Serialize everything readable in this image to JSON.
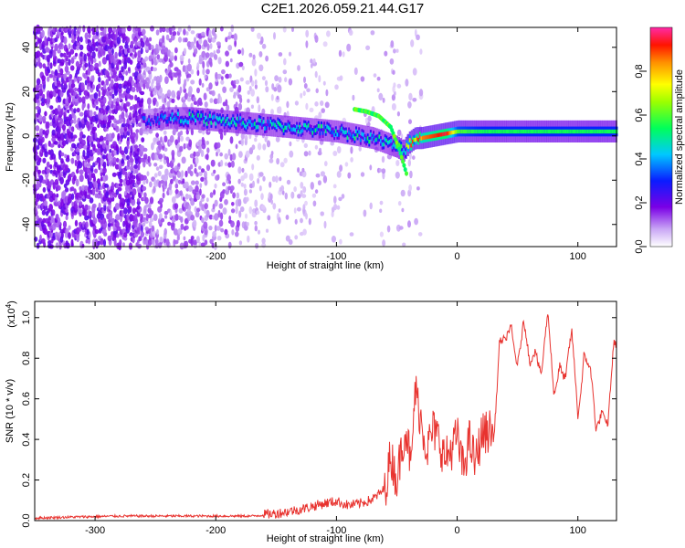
{
  "title": "C2E1.2026.059.21.44.G17",
  "chart_data": [
    {
      "type": "heatmap",
      "xlabel": "Height of straight line (km)",
      "ylabel": "Frequency (Hz)",
      "xlim": [
        -350,
        132
      ],
      "ylim": [
        -50,
        49
      ],
      "xticks": [
        -300,
        -200,
        -100,
        0,
        100
      ],
      "yticks": [
        -40,
        -20,
        0,
        20,
        40
      ],
      "colorbar": {
        "label": "Normalized spectral amplitude",
        "range": [
          0.0,
          1.0
        ],
        "ticks": [
          "0.0",
          "0.2",
          "0.4",
          "0.6",
          "0.8"
        ],
        "tick_values": [
          0.0,
          0.2,
          0.4,
          0.6,
          0.8
        ],
        "colormap": "rainbow (white-purple-blue-cyan-green-yellow-red-magenta)"
      },
      "ridge": {
        "description": "dominant frequency ridge vs height",
        "x": [
          -260,
          -240,
          -220,
          -200,
          -180,
          -160,
          -140,
          -120,
          -100,
          -90,
          -80,
          -70,
          -60,
          -50,
          -45,
          -40,
          -35,
          -30,
          -20,
          -10,
          0,
          20,
          60,
          100,
          132
        ],
        "y": [
          7,
          8,
          8,
          7,
          6,
          5,
          4,
          3,
          2,
          1,
          0,
          -1,
          -3,
          -5,
          -7,
          -3,
          -1,
          -1,
          0,
          1,
          2,
          2,
          2,
          2,
          2
        ],
        "peak_amplitude": [
          0.3,
          0.4,
          0.45,
          0.45,
          0.45,
          0.45,
          0.45,
          0.45,
          0.45,
          0.45,
          0.45,
          0.45,
          0.45,
          0.5,
          0.5,
          0.75,
          0.8,
          0.85,
          0.9,
          0.95,
          0.6,
          0.55,
          0.55,
          0.55,
          0.55
        ]
      },
      "secondary_branch": {
        "x": [
          -85,
          -75,
          -65,
          -55,
          -48,
          -42
        ],
        "y": [
          12,
          11,
          9,
          4,
          -6,
          -17
        ]
      }
    },
    {
      "type": "line",
      "xlabel": "Height of straight line (km)",
      "ylabel": "SNR (10 * v/v)",
      "y_scale_label": "(x10^4)",
      "xlim": [
        -350,
        132
      ],
      "ylim": [
        0.0,
        1.08
      ],
      "xticks": [
        -300,
        -200,
        -100,
        0,
        100
      ],
      "yticks": [
        "0.0",
        "0.2",
        "0.4",
        "0.6",
        "0.8",
        "1.0"
      ],
      "ytick_values": [
        0.0,
        0.2,
        0.4,
        0.6,
        0.8,
        1.0
      ],
      "series": [
        {
          "name": "SNR",
          "color": "#e8332f",
          "x": [
            -350,
            -320,
            -280,
            -240,
            -200,
            -170,
            -150,
            -130,
            -110,
            -100,
            -90,
            -80,
            -70,
            -60,
            -55,
            -50,
            -45,
            -42,
            -38,
            -35,
            -30,
            -25,
            -20,
            -15,
            -10,
            -5,
            0,
            5,
            10,
            15,
            20,
            25,
            30,
            35,
            40,
            45,
            50,
            55,
            60,
            65,
            70,
            75,
            80,
            85,
            90,
            95,
            100,
            105,
            110,
            115,
            120,
            125,
            130
          ],
          "y": [
            0.01,
            0.015,
            0.02,
            0.02,
            0.02,
            0.02,
            0.03,
            0.05,
            0.08,
            0.09,
            0.07,
            0.08,
            0.1,
            0.15,
            0.32,
            0.2,
            0.4,
            0.45,
            0.25,
            0.65,
            0.5,
            0.35,
            0.45,
            0.4,
            0.3,
            0.35,
            0.42,
            0.25,
            0.4,
            0.28,
            0.42,
            0.44,
            0.45,
            0.9,
            0.8,
            0.95,
            0.85,
            0.95,
            0.7,
            0.9,
            0.78,
            0.95,
            0.6,
            0.85,
            0.7,
            0.85,
            0.55,
            0.88,
            0.7,
            0.4,
            0.62,
            0.5,
            0.8
          ]
        }
      ]
    }
  ]
}
